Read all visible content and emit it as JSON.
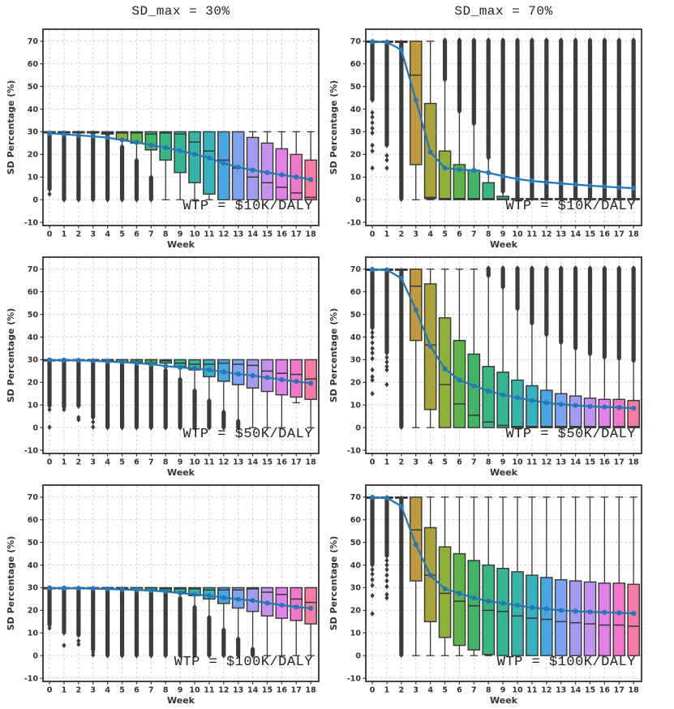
{
  "figure": {
    "titles": [
      "SD_max = 30%",
      "SD_max = 70%"
    ],
    "ylabel": "SD Percentage (%)",
    "xlabel": "Week",
    "yticks": [
      -10,
      0,
      10,
      20,
      30,
      40,
      50,
      60,
      70
    ],
    "xticks": [
      0,
      1,
      2,
      3,
      4,
      5,
      6,
      7,
      8,
      9,
      10,
      11,
      12,
      13,
      14,
      15,
      16,
      17,
      18
    ],
    "ylim": [
      -11.4,
      75.3
    ],
    "xlim": [
      -0.45,
      18.55
    ],
    "grid": true,
    "legend": "none"
  },
  "style": {
    "background": "#ffffff",
    "grid_color": "#cfcfcf",
    "axis_color": "#333333",
    "tick_label_color": "#333333",
    "box_edge_color": "#363636",
    "outlier_color": "#3b3b3b",
    "mean_line_color": "#2478b6",
    "annotation_color": "#222222",
    "box_palette": [
      "#f77189",
      "#e8843a",
      "#d49140",
      "#c09b3e",
      "#aaa23b",
      "#8fb03c",
      "#5bb54a",
      "#3fb566",
      "#37b67e",
      "#35b693",
      "#35b4a8",
      "#38b1c0",
      "#4aa6e3",
      "#7ba3f2",
      "#a39bf2",
      "#c592f0",
      "#e380ea",
      "#f177cd",
      "#f57da4"
    ]
  },
  "box_format": [
    "q1",
    "median",
    "q3",
    "whisker_low",
    "whisker_high",
    "outlier_col_low",
    "outlier_col_high"
  ],
  "chart_data": [
    {
      "type": "box",
      "id": "sdmax30-wtp10k",
      "sd_max": "30%",
      "wtp": "$10K/DALY",
      "annotation": "WTP = $10K/DALY",
      "boxes": [
        [
          29.5,
          30,
          30,
          29.5,
          30,
          4.5,
          29.5
        ],
        [
          29.5,
          30,
          30,
          29.5,
          30,
          0,
          29.5
        ],
        [
          29.5,
          30,
          30,
          29.5,
          30,
          0,
          29.5
        ],
        [
          29.5,
          30,
          30,
          29.5,
          30,
          0,
          29.5
        ],
        [
          29,
          29.5,
          30,
          28.5,
          30,
          0,
          28.5
        ],
        [
          26.5,
          29.5,
          30,
          23.5,
          30,
          0,
          23.5
        ],
        [
          25,
          29.5,
          30,
          17.5,
          30,
          0,
          17.5
        ],
        [
          22,
          29,
          30,
          10,
          30,
          0,
          10
        ],
        [
          17.5,
          29.5,
          30,
          0,
          30,
          null,
          null
        ],
        [
          12,
          29,
          30,
          0,
          30,
          null,
          null
        ],
        [
          7.5,
          25.5,
          30,
          0,
          30,
          null,
          null
        ],
        [
          2.5,
          21.5,
          30,
          0,
          30,
          null,
          null
        ],
        [
          0,
          17.5,
          30,
          0,
          30,
          null,
          null
        ],
        [
          0,
          14,
          30,
          0,
          30,
          null,
          null
        ],
        [
          0,
          10,
          27.5,
          0,
          30,
          null,
          null
        ],
        [
          0,
          7.5,
          25,
          0,
          30,
          null,
          null
        ],
        [
          0,
          5.5,
          22.5,
          0,
          30,
          null,
          null
        ],
        [
          0,
          3,
          20,
          0,
          30,
          null,
          null
        ],
        [
          0,
          1,
          17.5,
          0,
          30,
          null,
          null
        ]
      ],
      "outlier_points": {
        "0": [
          2.5
        ]
      },
      "mean": [
        29.3,
        28.9,
        28.4,
        28.0,
        27.4,
        26.4,
        25.3,
        24.1,
        23.0,
        21.6,
        20.1,
        18.4,
        16.1,
        14.3,
        13.1,
        12.0,
        11.0,
        10.0,
        8.9
      ]
    },
    {
      "type": "box",
      "id": "sdmax70-wtp10k",
      "sd_max": "70%",
      "wtp": "$10K/DALY",
      "annotation": "WTP = $10K/DALY",
      "boxes": [
        [
          69.5,
          70,
          70,
          69.5,
          70,
          44,
          69.5
        ],
        [
          69.5,
          70,
          70,
          69.5,
          70,
          24,
          69.5
        ],
        [
          69.5,
          70,
          70,
          69.5,
          70,
          0.5,
          69.5
        ],
        [
          15.5,
          55,
          70,
          0,
          70,
          null,
          null
        ],
        [
          0.5,
          1,
          42.5,
          0,
          70,
          null,
          null
        ],
        [
          0,
          0.5,
          21.5,
          0,
          53,
          53,
          70.5
        ],
        [
          0,
          0.5,
          15.5,
          0,
          39,
          39,
          70.5
        ],
        [
          0,
          0.5,
          13,
          0,
          33.5,
          33.5,
          70.5
        ],
        [
          0,
          0.5,
          7.5,
          0,
          18.5,
          18.5,
          70.5
        ],
        [
          0,
          0.3,
          1.5,
          0,
          3.5,
          3.5,
          70.5
        ],
        [
          0,
          0.2,
          0.5,
          0,
          0.5,
          0.5,
          70.5
        ],
        [
          0,
          0.2,
          0.5,
          0,
          0.5,
          0.5,
          70.5
        ],
        [
          0,
          0.2,
          0.5,
          0,
          0.5,
          0.5,
          70.5
        ],
        [
          0,
          0.2,
          0.5,
          0,
          0.5,
          0.5,
          70.5
        ],
        [
          0,
          0.2,
          0.5,
          0,
          0.5,
          0.5,
          70.5
        ],
        [
          0,
          0.2,
          0.5,
          0,
          0.5,
          0.5,
          70.5
        ],
        [
          0,
          0.2,
          0.5,
          0,
          0.5,
          0.5,
          70.5
        ],
        [
          0,
          0.2,
          0.5,
          0,
          0.5,
          0.5,
          70.5
        ],
        [
          0,
          0.2,
          0.5,
          0,
          0.5,
          0.5,
          70.5
        ]
      ],
      "outlier_points": {
        "0": [
          14,
          21.5,
          24,
          29.5,
          31.5,
          34,
          36.5,
          38.5
        ],
        "1": [
          14,
          17.5,
          19.5
        ],
        "2": [
          0.2
        ]
      },
      "mean": [
        69.8,
        69.6,
        66.2,
        44.0,
        21.0,
        14.0,
        13.3,
        13.0,
        11.9,
        10.4,
        9.1,
        8.3,
        7.7,
        7.2,
        6.7,
        6.2,
        5.8,
        5.4,
        5.1
      ]
    },
    {
      "type": "box",
      "id": "sdmax30-wtp50k",
      "sd_max": "30%",
      "wtp": "$50K/DALY",
      "annotation": "WTP = $50K/DALY",
      "boxes": [
        [
          29.5,
          30,
          30,
          29.5,
          30,
          9.5,
          29.5
        ],
        [
          29.5,
          30,
          30,
          29.5,
          30,
          9,
          29.5
        ],
        [
          29.5,
          30,
          30,
          29.5,
          30,
          9.5,
          29.5
        ],
        [
          29.5,
          30,
          30,
          29.5,
          30,
          4.5,
          29.5
        ],
        [
          29.5,
          30,
          30,
          29.5,
          30,
          0,
          29.5
        ],
        [
          29,
          30,
          30,
          29,
          30,
          0,
          29
        ],
        [
          29,
          30,
          30,
          29,
          30,
          0,
          29
        ],
        [
          28.5,
          30,
          30,
          28.5,
          30,
          0,
          28.5
        ],
        [
          28.5,
          29.5,
          30,
          25.5,
          30,
          0,
          25.5
        ],
        [
          27,
          28.5,
          30,
          21.5,
          30,
          0,
          21.5
        ],
        [
          25.5,
          28,
          30,
          16.5,
          30,
          0,
          16.5
        ],
        [
          22.5,
          28,
          30,
          12,
          30,
          0,
          12
        ],
        [
          20.5,
          28.5,
          30,
          7,
          30,
          0,
          7
        ],
        [
          19,
          28,
          30,
          3,
          30,
          0,
          3
        ],
        [
          17.5,
          27.5,
          30,
          0,
          30,
          null,
          null
        ],
        [
          16,
          25,
          30,
          0,
          30,
          null,
          null
        ],
        [
          14.5,
          24,
          30,
          0,
          30,
          null,
          null
        ],
        [
          13.5,
          23.5,
          30,
          11,
          30,
          null,
          null
        ],
        [
          12.5,
          21.5,
          30,
          0,
          30,
          null,
          null
        ]
      ],
      "outlier_points": {
        "0": [
          8,
          0.2
        ],
        "1": [
          8
        ],
        "2": [
          4.5,
          3.5
        ],
        "3": [
          2.5,
          0.3
        ]
      },
      "mean": [
        29.9,
        29.8,
        29.7,
        29.5,
        29.2,
        28.9,
        28.5,
        28.0,
        27.2,
        26.6,
        26.1,
        25.5,
        24.6,
        23.7,
        23.0,
        22.1,
        21.2,
        20.4,
        19.6
      ]
    },
    {
      "type": "box",
      "id": "sdmax70-wtp50k",
      "sd_max": "70%",
      "wtp": "$50K/DALY",
      "annotation": "WTP = $50K/DALY",
      "boxes": [
        [
          69.5,
          70,
          70,
          69.5,
          70,
          44,
          69.5
        ],
        [
          69.5,
          70,
          70,
          69.5,
          70,
          33,
          69.5
        ],
        [
          69.5,
          70,
          70,
          69.5,
          70,
          0.5,
          69.5
        ],
        [
          38.5,
          62.5,
          70,
          0,
          70,
          null,
          null
        ],
        [
          8,
          36.5,
          63.5,
          0,
          70,
          null,
          null
        ],
        [
          0,
          19,
          48.5,
          0,
          70,
          null,
          null
        ],
        [
          0,
          10.5,
          38.5,
          0,
          70,
          null,
          null
        ],
        [
          0,
          5.5,
          32.5,
          0,
          70,
          null,
          null
        ],
        [
          0,
          2.5,
          27,
          0,
          67,
          67,
          70.5
        ],
        [
          0,
          1,
          24.5,
          0,
          62,
          62,
          70.5
        ],
        [
          0,
          0.5,
          21,
          0,
          52.5,
          52.5,
          70.5
        ],
        [
          0,
          0.5,
          18.5,
          0,
          46,
          46,
          70.5
        ],
        [
          0,
          0.5,
          16.5,
          0,
          41,
          41,
          70.5
        ],
        [
          0,
          0.5,
          15,
          0,
          37.5,
          37.5,
          70.5
        ],
        [
          0,
          0.5,
          14,
          0,
          35,
          35,
          70.5
        ],
        [
          0,
          0.5,
          13,
          0,
          32.5,
          32.5,
          70.5
        ],
        [
          0,
          0.5,
          12.5,
          0,
          31,
          31,
          70.5
        ],
        [
          0,
          0.5,
          12.5,
          0,
          30.5,
          30.5,
          70.5
        ],
        [
          0,
          0.5,
          12,
          0,
          29.5,
          29.5,
          70.5
        ]
      ],
      "outlier_points": {
        "0": [
          15,
          21,
          22.5,
          25.5,
          30.5,
          33,
          35,
          37.5,
          40,
          42
        ],
        "1": [
          19,
          25.5,
          27,
          29,
          31
        ],
        "2": [
          0.2
        ]
      },
      "mean": [
        69.9,
        69.7,
        66.0,
        52.0,
        36.0,
        26.0,
        21.0,
        18.5,
        16.2,
        14.5,
        13.2,
        12.0,
        11.0,
        10.3,
        9.8,
        9.4,
        9.1,
        8.9,
        8.6
      ]
    },
    {
      "type": "box",
      "id": "sdmax30-wtp100k",
      "sd_max": "30%",
      "wtp": "$100K/DALY",
      "annotation": "WTP = $100K/DALY",
      "boxes": [
        [
          29.5,
          30,
          30,
          29.5,
          30,
          13.5,
          29.5
        ],
        [
          29.5,
          30,
          30,
          29.5,
          30,
          10.5,
          29.5
        ],
        [
          29.5,
          30,
          30,
          29.5,
          30,
          9,
          29.5
        ],
        [
          29.5,
          30,
          30,
          29.5,
          30,
          2.5,
          29.5
        ],
        [
          29.5,
          30,
          30,
          29.5,
          30,
          0,
          29.5
        ],
        [
          29.5,
          30,
          30,
          29.5,
          30,
          0,
          29.5
        ],
        [
          29,
          30,
          30,
          29,
          30,
          0,
          29
        ],
        [
          29,
          30,
          30,
          29,
          30,
          0,
          29
        ],
        [
          28.5,
          29.5,
          30,
          28.5,
          30,
          0,
          28.5
        ],
        [
          28,
          29.5,
          30,
          25.5,
          30,
          0,
          25.5
        ],
        [
          26.5,
          29.5,
          30,
          21.5,
          30,
          0,
          21.5
        ],
        [
          25,
          29,
          30,
          17,
          30,
          0,
          17
        ],
        [
          23,
          29,
          30,
          11.5,
          30,
          0,
          11.5
        ],
        [
          21,
          29,
          30,
          7.5,
          30,
          0,
          7.5
        ],
        [
          19.5,
          29.5,
          30,
          3,
          30,
          0,
          3
        ],
        [
          17.5,
          28,
          30,
          0,
          30,
          null,
          null
        ],
        [
          16.5,
          27,
          30,
          0,
          30,
          null,
          null
        ],
        [
          15.5,
          25,
          30,
          0,
          30,
          null,
          null
        ],
        [
          14,
          23.5,
          30,
          0,
          30,
          null,
          null
        ]
      ],
      "outlier_points": {
        "0": [
          12.2
        ],
        "1": [
          10,
          4.5
        ],
        "2": [
          6.5,
          5
        ],
        "3": [
          1.5,
          0.3
        ]
      },
      "mean": [
        29.9,
        29.8,
        29.7,
        29.6,
        29.4,
        29.2,
        29.0,
        28.7,
        28.3,
        27.6,
        27.0,
        26.5,
        25.6,
        24.9,
        24.3,
        23.2,
        22.3,
        21.5,
        20.9
      ]
    },
    {
      "type": "box",
      "id": "sdmax70-wtp100k",
      "sd_max": "70%",
      "wtp": "$100K/DALY",
      "annotation": "WTP = $100K/DALY",
      "boxes": [
        [
          69.5,
          70,
          70,
          69.5,
          70,
          40,
          69.5
        ],
        [
          69.5,
          70,
          70,
          69.5,
          70,
          44,
          69.5
        ],
        [
          69.5,
          70,
          70,
          69.5,
          70,
          0.5,
          69.5
        ],
        [
          33,
          55.5,
          70,
          0,
          70,
          null,
          null
        ],
        [
          15,
          35.5,
          56.5,
          0,
          70,
          null,
          null
        ],
        [
          8,
          27.5,
          48,
          0,
          70,
          null,
          null
        ],
        [
          4.5,
          24,
          45,
          0,
          70,
          null,
          null
        ],
        [
          2.5,
          22,
          42,
          0,
          70,
          null,
          null
        ],
        [
          0.5,
          20,
          40,
          0,
          70,
          null,
          null
        ],
        [
          0,
          19.5,
          38.5,
          0,
          70,
          null,
          null
        ],
        [
          0,
          17.5,
          37,
          0,
          70,
          null,
          null
        ],
        [
          0,
          16.5,
          35.5,
          0,
          70,
          null,
          null
        ],
        [
          0,
          16,
          34.5,
          0,
          70,
          null,
          null
        ],
        [
          0,
          15,
          33.5,
          0,
          70,
          null,
          null
        ],
        [
          0,
          14.5,
          33,
          0,
          70,
          null,
          null
        ],
        [
          0,
          14,
          32.5,
          0,
          70,
          null,
          null
        ],
        [
          0,
          13.5,
          32,
          0,
          70,
          null,
          null
        ],
        [
          0,
          13.5,
          32,
          0,
          70,
          null,
          null
        ],
        [
          0,
          13,
          31.5,
          0,
          70,
          null,
          null
        ]
      ],
      "outlier_points": {
        "0": [
          18.5,
          26.5,
          31,
          33.5,
          36,
          38
        ],
        "1": [
          25.5,
          27,
          30.5,
          33,
          35.5,
          38,
          40,
          42
        ],
        "2": [
          0.2
        ]
      },
      "mean": [
        69.9,
        69.7,
        66.0,
        49.0,
        35.5,
        29.5,
        27.5,
        25.5,
        24.0,
        23.2,
        22.2,
        21.2,
        20.6,
        20.0,
        19.6,
        19.3,
        19.1,
        18.9,
        18.6
      ]
    }
  ]
}
